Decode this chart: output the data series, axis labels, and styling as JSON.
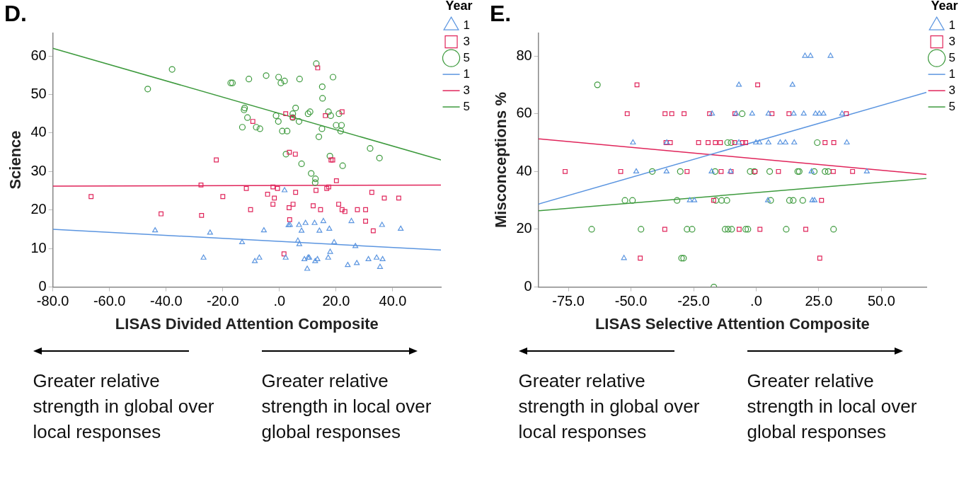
{
  "chart_data": [
    {
      "type": "scatter",
      "title": "D.",
      "xlabel": "LISAS Divided Attention Composite",
      "ylabel": "Science",
      "legend_title": "Year",
      "legend": "right",
      "grid": false,
      "xlim": [
        -80,
        57
      ],
      "ylim": [
        0,
        66
      ],
      "xticks": [
        {
          "value": -80,
          "label": "-80.0"
        },
        {
          "value": -60,
          "label": "-60.0"
        },
        {
          "value": -40,
          "label": "-40.0"
        },
        {
          "value": -20,
          "label": "-20.0"
        },
        {
          "value": 0,
          "label": ".0"
        },
        {
          "value": 20,
          "label": "20.0"
        },
        {
          "value": 40,
          "label": "40.0"
        }
      ],
      "yticks": [
        0,
        10,
        20,
        30,
        40,
        50,
        60
      ],
      "series": [
        {
          "name": "1",
          "color": "#5b95e0",
          "marker": "triangle",
          "x": [
            -43.9,
            -24.5,
            -26.8,
            1.8,
            -5.5,
            -13.2,
            3.2,
            3.7,
            6.9,
            9.2,
            12.4,
            15.5,
            7.8,
            14.1,
            17.6,
            25.4,
            36.2,
            42.8,
            6.5,
            7.0,
            19.3,
            26.8,
            17.9,
            -8.7,
            -7.1,
            2.2,
            8.8,
            10.1,
            10.5,
            13.4,
            12.6,
            17.2,
            9.8,
            24.1,
            27.3,
            31.4,
            34.3,
            36.4,
            35.5
          ],
          "values": [
            14.7,
            14.1,
            7.6,
            25.1,
            14.7,
            11.6,
            16.0,
            16.1,
            16.1,
            16.6,
            16.6,
            17.1,
            14.6,
            14.6,
            15.1,
            17.1,
            16.1,
            15.1,
            12.0,
            11.1,
            11.6,
            10.6,
            9.1,
            6.7,
            7.6,
            7.6,
            7.2,
            7.6,
            7.6,
            7.2,
            6.7,
            7.6,
            4.7,
            5.7,
            6.2,
            7.2,
            7.6,
            7.2,
            5.2
          ]
        },
        {
          "name": "3",
          "color": "#e0245a",
          "marker": "square",
          "x": [
            -66.5,
            -41.8,
            -27.7,
            -22.3,
            -20.0,
            -27.5,
            13.5,
            2.2,
            4.6,
            16.2,
            22.1,
            -9.4,
            3.5,
            5.6,
            18.2,
            18.8,
            20.1,
            17.4,
            16.7,
            -2.3,
            -0.7,
            -11.7,
            5.7,
            12.9,
            -4.2,
            -1.8,
            -2.3,
            4.8,
            3.4,
            11.9,
            14.5,
            20.9,
            22.1,
            23.1,
            -10.2,
            27.5,
            30.4,
            32.6,
            37.0,
            42.1,
            3.6,
            30.4,
            33.1,
            1.6
          ],
          "values": [
            23.5,
            19.0,
            26.5,
            33.0,
            23.5,
            18.6,
            56.9,
            45.0,
            44.0,
            44.5,
            45.5,
            43.0,
            35.0,
            34.5,
            33.0,
            33.0,
            27.6,
            26.0,
            25.6,
            26.0,
            25.6,
            25.6,
            24.6,
            25.1,
            24.1,
            23.1,
            21.5,
            21.5,
            20.6,
            21.1,
            20.1,
            21.5,
            20.1,
            19.6,
            20.1,
            20.1,
            20.1,
            24.6,
            23.1,
            23.1,
            17.5,
            17.1,
            14.6,
            8.6
          ]
        },
        {
          "name": "5",
          "color": "#3d9a3d",
          "marker": "circle",
          "x": [
            -46.5,
            -37.9,
            -17.2,
            13.0,
            -16.6,
            -10.8,
            -4.7,
            -0.3,
            0.5,
            1.8,
            7.1,
            18.9,
            15.1,
            15.2,
            -12.3,
            -12.5,
            5.7,
            -1.2,
            4.7,
            -11.3,
            -0.4,
            4.7,
            6.9,
            10.1,
            10.8,
            17.3,
            18.1,
            21.0,
            -13.1,
            -8.2,
            -6.9,
            1.0,
            2.7,
            15.0,
            20.0,
            21.9,
            21.6,
            13.9,
            2.3,
            32.0,
            35.3,
            17.8,
            7.8,
            22.3,
            11.2,
            12.7,
            12.6
          ],
          "values": [
            51.4,
            56.5,
            53.0,
            58.0,
            53.0,
            54.0,
            54.9,
            54.5,
            53.0,
            53.5,
            54.0,
            54.5,
            52.0,
            49.0,
            46.5,
            46.0,
            46.5,
            44.5,
            45.0,
            44.0,
            43.0,
            44.0,
            43.0,
            45.0,
            45.5,
            45.5,
            44.5,
            45.0,
            41.5,
            41.5,
            41.1,
            40.5,
            40.5,
            41.1,
            42.0,
            42.0,
            40.5,
            39.0,
            34.5,
            36.0,
            33.5,
            34.0,
            32.0,
            31.5,
            29.5,
            28.1,
            27.1
          ]
        },
        {
          "name": "1",
          "type": "line",
          "color": "#5b95e0",
          "x": [
            -80,
            57
          ],
          "values": [
            15.0,
            9.6
          ]
        },
        {
          "name": "3",
          "type": "line",
          "color": "#e0245a",
          "x": [
            -80,
            57
          ],
          "values": [
            26.2,
            26.5
          ]
        },
        {
          "name": "5",
          "type": "line",
          "color": "#3d9a3d",
          "x": [
            -80,
            57
          ],
          "values": [
            62.0,
            33.0
          ]
        }
      ],
      "annotations": [
        "Greater relative strength in global over local responses",
        "Greater relative strength in local over global responses"
      ]
    },
    {
      "type": "scatter",
      "title": "E.",
      "xlabel": "LISAS Selective Attention Composite",
      "ylabel": "Misconceptions %",
      "legend_title": "Year",
      "legend": "right",
      "grid": false,
      "xlim": [
        -87,
        68
      ],
      "ylim": [
        0,
        88
      ],
      "xticks": [
        {
          "value": -75,
          "label": "-75.0"
        },
        {
          "value": -50,
          "label": "-50.0"
        },
        {
          "value": -25,
          "label": "-25.0"
        },
        {
          "value": 0,
          "label": ".0"
        },
        {
          "value": 25,
          "label": "25.0"
        },
        {
          "value": 50,
          "label": "50.0"
        }
      ],
      "yticks": [
        0,
        20,
        40,
        60,
        80
      ],
      "series": [
        {
          "name": "1",
          "color": "#5b95e0",
          "marker": "triangle",
          "x": [
            -17.6,
            -49.2,
            -35.7,
            -47.9,
            -35.8,
            -17.8,
            -26.5,
            -24.7,
            -52.8,
            19.5,
            21.7,
            29.7,
            -6.9,
            14.5,
            -8.0,
            -1.6,
            4.9,
            15.0,
            19.0,
            23.7,
            25.2,
            26.9,
            34.3,
            -6.9,
            -0.1,
            1.3,
            4.9,
            9.6,
            11.7,
            15.2,
            36.2,
            -10.3,
            22.1,
            44.2,
            4.7,
            22.4,
            23.3
          ],
          "values": [
            60,
            50,
            50,
            40,
            40,
            40,
            30,
            30,
            10,
            80,
            80,
            80,
            70,
            70,
            60,
            60,
            60,
            60,
            60,
            60,
            60,
            60,
            60,
            50,
            50,
            50,
            50,
            50,
            50,
            50,
            50,
            40,
            40,
            40,
            30,
            30,
            30
          ]
        },
        {
          "name": "3",
          "color": "#e0245a",
          "marker": "square",
          "x": [
            -47.6,
            -51.5,
            -36.4,
            -33.7,
            -28.8,
            -18.6,
            -36.0,
            -34.3,
            -23.0,
            -19.2,
            -16.3,
            -14.3,
            -76.3,
            -54.1,
            -27.6,
            -14.0,
            -17.0,
            -36.5,
            -46.3,
            0.6,
            -8.5,
            6.3,
            13.1,
            36.0,
            -8.6,
            -5.4,
            -4.2,
            27.5,
            31.0,
            -10.0,
            -0.5,
            8.9,
            30.8,
            38.5,
            26.1,
            -6.8,
            1.5,
            19.8,
            25.4
          ],
          "values": [
            70,
            60,
            60,
            60,
            60,
            60,
            50,
            50,
            50,
            50,
            50,
            50,
            40,
            40,
            40,
            40,
            30,
            20,
            10,
            70,
            60,
            60,
            60,
            60,
            50,
            50,
            50,
            50,
            50,
            40,
            40,
            40,
            40,
            40,
            30,
            20,
            20,
            20,
            10
          ]
        },
        {
          "name": "5",
          "color": "#3d9a3d",
          "marker": "circle",
          "x": [
            -63.4,
            -41.5,
            -30.3,
            -16.4,
            -52.4,
            -49.4,
            -31.6,
            -16.1,
            -13.8,
            -11.7,
            -65.7,
            -46.0,
            -27.6,
            -25.6,
            -12.4,
            -29.8,
            -29.0,
            -16.9,
            -11.4,
            -5.6,
            24.4,
            -10.0,
            -2.4,
            -0.7,
            5.4,
            16.6,
            17.2,
            23.2,
            27.5,
            28.8,
            5.8,
            13.3,
            14.8,
            18.6,
            -11.2,
            -9.8,
            -4.2,
            -3.3,
            12.0,
            30.9
          ],
          "values": [
            70,
            40,
            40,
            40,
            30,
            30,
            30,
            30,
            30,
            30,
            20,
            20,
            20,
            20,
            20,
            10,
            10,
            0,
            50,
            60,
            50,
            50,
            40,
            40,
            40,
            40,
            40,
            40,
            40,
            40,
            30,
            30,
            30,
            30,
            20,
            20,
            20,
            20,
            20,
            20
          ]
        },
        {
          "name": "1",
          "type": "line",
          "color": "#5b95e0",
          "x": [
            -87,
            68
          ],
          "values": [
            28.7,
            67.4
          ]
        },
        {
          "name": "3",
          "type": "line",
          "color": "#e0245a",
          "x": [
            -87,
            68
          ],
          "values": [
            51.3,
            39.0
          ]
        },
        {
          "name": "5",
          "type": "line",
          "color": "#3d9a3d",
          "x": [
            -87,
            68
          ],
          "values": [
            26.4,
            37.6
          ]
        }
      ],
      "annotations": [
        "Greater relative strength in global over local responses",
        "Greater relative strength in local over global responses"
      ]
    }
  ]
}
